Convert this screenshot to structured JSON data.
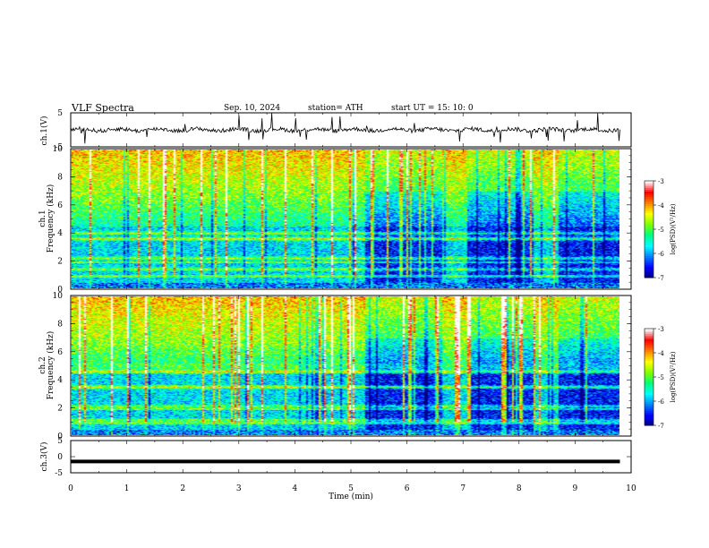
{
  "header": {
    "title": "VLF  Spectra",
    "date": "Sep. 10, 2024",
    "station": "station= ATH",
    "start_ut": "start  UT  =    15: 10: 0"
  },
  "chart_data": [
    {
      "type": "line",
      "id": "ch1-waveform",
      "ylabel": "ch.1(V)",
      "ylim": [
        -5,
        5
      ],
      "yticks": [
        "5",
        "-5"
      ],
      "xlim": [
        0,
        10
      ],
      "description_values": {
        "baseline": 0.0,
        "noise_amplitude": 1.2,
        "spike_amplitude": 4.5
      },
      "color": "#000000"
    },
    {
      "type": "heatmap",
      "id": "ch1-spectrogram",
      "panel_label": "ch.1",
      "ylabel": "Frequency  (kHz)",
      "ylim": [
        0,
        10
      ],
      "yticks": [
        "0",
        "2",
        "4",
        "6",
        "8",
        "10"
      ],
      "xlim": [
        0,
        9.8
      ],
      "colorbar": {
        "label": "log(PSD)(V²/Hz)",
        "ticks": [
          "-3",
          "-4",
          "-5",
          "-6",
          "-7"
        ],
        "range": [
          -7,
          -3
        ]
      },
      "quiet_intervals_min": [
        [
          5.25,
          6.6
        ],
        [
          7.05,
          8.25
        ],
        [
          8.7,
          9.8
        ]
      ],
      "bands_khz": [
        3.6,
        4.0,
        2.2,
        1.4
      ]
    },
    {
      "type": "heatmap",
      "id": "ch2-spectrogram",
      "panel_label": "ch.2",
      "ylabel": "Frequency  (kHz)",
      "ylim": [
        0,
        10
      ],
      "yticks": [
        "0",
        "2",
        "4",
        "6",
        "8",
        "10"
      ],
      "xlim": [
        0,
        9.8
      ],
      "colorbar": {
        "label": "log(PSD)(V²/Hz)",
        "ticks": [
          "-3",
          "-4",
          "-5",
          "-6",
          "-7"
        ],
        "range": [
          -7,
          -3
        ]
      },
      "quiet_intervals_min": [
        [
          5.25,
          6.6
        ],
        [
          7.05,
          8.25
        ],
        [
          8.7,
          9.8
        ]
      ],
      "bands_khz": [
        3.5,
        4.6,
        2.1,
        1.1
      ]
    },
    {
      "type": "line",
      "id": "ch3-waveform",
      "ylabel": "ch.3(V)",
      "ylim": [
        -5,
        5
      ],
      "yticks": [
        "5",
        "0",
        "-5"
      ],
      "xlim": [
        0,
        10
      ],
      "description_values": {
        "baseline": -1.5
      },
      "color": "#000000"
    }
  ],
  "xaxis": {
    "label": "Time  (min)",
    "ticks": [
      "0",
      "1",
      "2",
      "3",
      "4",
      "5",
      "6",
      "7",
      "8",
      "9",
      "10"
    ],
    "range": [
      0,
      10
    ]
  },
  "colormap": [
    "#000080",
    "#0000ff",
    "#0080ff",
    "#00ffff",
    "#00ff80",
    "#80ff00",
    "#ffff00",
    "#ff8000",
    "#ff0000",
    "#ffffff"
  ]
}
